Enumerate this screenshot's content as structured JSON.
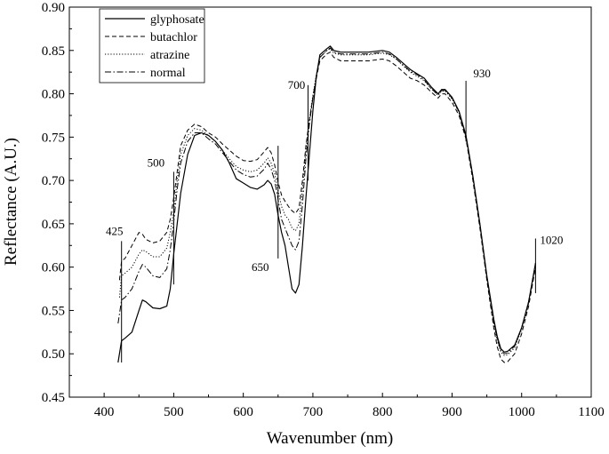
{
  "chart_data": {
    "type": "line",
    "title": "",
    "xlabel": "Wavenumber (nm)",
    "ylabel": "Reflectance (A.U.)",
    "xlim": [
      350,
      1100
    ],
    "ylim": [
      0.45,
      0.9
    ],
    "x_ticks": [
      "400",
      "500",
      "600",
      "700",
      "800",
      "900",
      "1000",
      "1100"
    ],
    "y_ticks": [
      "0.45",
      "0.50",
      "0.55",
      "0.60",
      "0.65",
      "0.70",
      "0.75",
      "0.80",
      "0.85",
      "0.90"
    ],
    "grid": false,
    "legend_position": "top-left",
    "series": [
      {
        "name": "glyphosate",
        "style": "solid",
        "x": [
          420,
          425,
          430,
          440,
          450,
          455,
          460,
          470,
          480,
          490,
          495,
          500,
          505,
          510,
          520,
          530,
          540,
          550,
          560,
          570,
          580,
          590,
          600,
          610,
          620,
          630,
          635,
          640,
          645,
          650,
          655,
          660,
          665,
          670,
          675,
          680,
          685,
          690,
          695,
          700,
          705,
          710,
          720,
          725,
          730,
          740,
          750,
          760,
          780,
          800,
          810,
          820,
          830,
          840,
          850,
          860,
          870,
          880,
          885,
          890,
          900,
          910,
          920,
          930,
          940,
          950,
          960,
          965,
          970,
          975,
          980,
          990,
          1000,
          1010,
          1020
        ],
        "y": [
          0.49,
          0.515,
          0.518,
          0.525,
          0.55,
          0.562,
          0.56,
          0.553,
          0.552,
          0.555,
          0.575,
          0.615,
          0.65,
          0.685,
          0.73,
          0.752,
          0.755,
          0.752,
          0.745,
          0.735,
          0.72,
          0.702,
          0.697,
          0.692,
          0.69,
          0.695,
          0.7,
          0.696,
          0.684,
          0.66,
          0.64,
          0.625,
          0.6,
          0.575,
          0.57,
          0.58,
          0.625,
          0.68,
          0.73,
          0.78,
          0.82,
          0.845,
          0.852,
          0.855,
          0.85,
          0.848,
          0.848,
          0.848,
          0.848,
          0.85,
          0.848,
          0.842,
          0.835,
          0.828,
          0.823,
          0.818,
          0.808,
          0.8,
          0.805,
          0.805,
          0.796,
          0.78,
          0.752,
          0.705,
          0.65,
          0.59,
          0.54,
          0.52,
          0.506,
          0.502,
          0.503,
          0.51,
          0.53,
          0.56,
          0.605
        ]
      },
      {
        "name": "butachlor",
        "style": "dashed",
        "x": [
          422,
          425,
          430,
          440,
          450,
          455,
          460,
          470,
          480,
          490,
          495,
          500,
          505,
          510,
          520,
          530,
          540,
          550,
          560,
          570,
          580,
          590,
          600,
          610,
          620,
          630,
          635,
          640,
          645,
          650,
          655,
          660,
          665,
          670,
          675,
          680,
          685,
          690,
          695,
          700,
          705,
          710,
          720,
          725,
          730,
          740,
          750,
          760,
          780,
          800,
          810,
          820,
          830,
          840,
          850,
          860,
          870,
          880,
          885,
          890,
          900,
          910,
          920,
          930,
          940,
          950,
          960,
          965,
          970,
          975,
          980,
          990,
          1000,
          1010,
          1020
        ],
        "y": [
          0.585,
          0.607,
          0.61,
          0.625,
          0.64,
          0.638,
          0.632,
          0.628,
          0.63,
          0.64,
          0.655,
          0.68,
          0.71,
          0.74,
          0.758,
          0.765,
          0.762,
          0.755,
          0.75,
          0.742,
          0.735,
          0.728,
          0.723,
          0.722,
          0.724,
          0.733,
          0.738,
          0.732,
          0.718,
          0.698,
          0.683,
          0.676,
          0.67,
          0.665,
          0.662,
          0.668,
          0.7,
          0.74,
          0.77,
          0.795,
          0.818,
          0.838,
          0.846,
          0.848,
          0.842,
          0.838,
          0.838,
          0.838,
          0.838,
          0.84,
          0.838,
          0.832,
          0.825,
          0.818,
          0.815,
          0.81,
          0.802,
          0.795,
          0.8,
          0.8,
          0.79,
          0.775,
          0.748,
          0.7,
          0.645,
          0.585,
          0.53,
          0.508,
          0.494,
          0.49,
          0.491,
          0.5,
          0.523,
          0.555,
          0.6
        ]
      },
      {
        "name": "atrazine",
        "style": "dotted",
        "x": [
          422,
          425,
          430,
          440,
          450,
          455,
          460,
          470,
          480,
          490,
          495,
          500,
          505,
          510,
          520,
          530,
          540,
          550,
          560,
          570,
          580,
          590,
          600,
          610,
          620,
          630,
          635,
          640,
          645,
          650,
          655,
          660,
          665,
          670,
          675,
          680,
          685,
          690,
          695,
          700,
          705,
          710,
          720,
          725,
          730,
          740,
          750,
          760,
          780,
          800,
          810,
          820,
          830,
          840,
          850,
          860,
          870,
          880,
          885,
          890,
          900,
          910,
          920,
          930,
          940,
          950,
          960,
          965,
          970,
          975,
          980,
          990,
          1000,
          1010,
          1020
        ],
        "y": [
          0.565,
          0.59,
          0.593,
          0.6,
          0.615,
          0.62,
          0.618,
          0.612,
          0.612,
          0.622,
          0.64,
          0.665,
          0.7,
          0.73,
          0.752,
          0.76,
          0.758,
          0.752,
          0.745,
          0.735,
          0.725,
          0.716,
          0.712,
          0.71,
          0.712,
          0.72,
          0.726,
          0.72,
          0.708,
          0.688,
          0.67,
          0.66,
          0.655,
          0.645,
          0.642,
          0.65,
          0.69,
          0.735,
          0.77,
          0.798,
          0.822,
          0.842,
          0.85,
          0.852,
          0.847,
          0.845,
          0.845,
          0.845,
          0.845,
          0.847,
          0.845,
          0.84,
          0.832,
          0.825,
          0.82,
          0.815,
          0.806,
          0.798,
          0.803,
          0.803,
          0.794,
          0.778,
          0.75,
          0.703,
          0.648,
          0.588,
          0.535,
          0.515,
          0.502,
          0.498,
          0.499,
          0.507,
          0.528,
          0.558,
          0.603
        ]
      },
      {
        "name": "normal",
        "style": "dashdot",
        "x": [
          420,
          425,
          430,
          440,
          450,
          455,
          460,
          470,
          480,
          490,
          495,
          500,
          505,
          510,
          520,
          530,
          540,
          550,
          560,
          570,
          580,
          590,
          600,
          610,
          620,
          630,
          635,
          640,
          645,
          650,
          655,
          660,
          665,
          670,
          675,
          680,
          685,
          690,
          695,
          700,
          705,
          710,
          720,
          725,
          730,
          740,
          750,
          760,
          780,
          800,
          810,
          820,
          830,
          840,
          850,
          860,
          870,
          880,
          885,
          890,
          900,
          910,
          920,
          930,
          940,
          950,
          960,
          965,
          970,
          975,
          980,
          990,
          1000,
          1010,
          1020
        ],
        "y": [
          0.535,
          0.562,
          0.565,
          0.575,
          0.595,
          0.603,
          0.6,
          0.59,
          0.588,
          0.598,
          0.62,
          0.652,
          0.69,
          0.72,
          0.745,
          0.755,
          0.755,
          0.748,
          0.742,
          0.732,
          0.722,
          0.712,
          0.707,
          0.704,
          0.705,
          0.713,
          0.72,
          0.713,
          0.7,
          0.678,
          0.655,
          0.645,
          0.635,
          0.625,
          0.62,
          0.63,
          0.672,
          0.725,
          0.765,
          0.795,
          0.82,
          0.842,
          0.85,
          0.853,
          0.848,
          0.846,
          0.846,
          0.846,
          0.846,
          0.848,
          0.846,
          0.84,
          0.833,
          0.826,
          0.822,
          0.816,
          0.806,
          0.799,
          0.804,
          0.804,
          0.795,
          0.779,
          0.75,
          0.704,
          0.649,
          0.589,
          0.537,
          0.517,
          0.504,
          0.5,
          0.501,
          0.509,
          0.53,
          0.56,
          0.604
        ]
      }
    ],
    "annotations": [
      {
        "label": "425",
        "x": 425,
        "y_range": [
          0.49,
          0.63
        ]
      },
      {
        "label": "500",
        "x": 500,
        "y_range": [
          0.58,
          0.71
        ]
      },
      {
        "label": "650",
        "x": 650,
        "y_range": [
          0.61,
          0.74
        ]
      },
      {
        "label": "700",
        "x": 693,
        "y_range": [
          0.7,
          0.81
        ]
      },
      {
        "label": "930",
        "x": 920,
        "y_range": [
          0.745,
          0.815
        ]
      },
      {
        "label": "1020",
        "x": 1020,
        "y_range": [
          0.57,
          0.633
        ]
      }
    ]
  }
}
